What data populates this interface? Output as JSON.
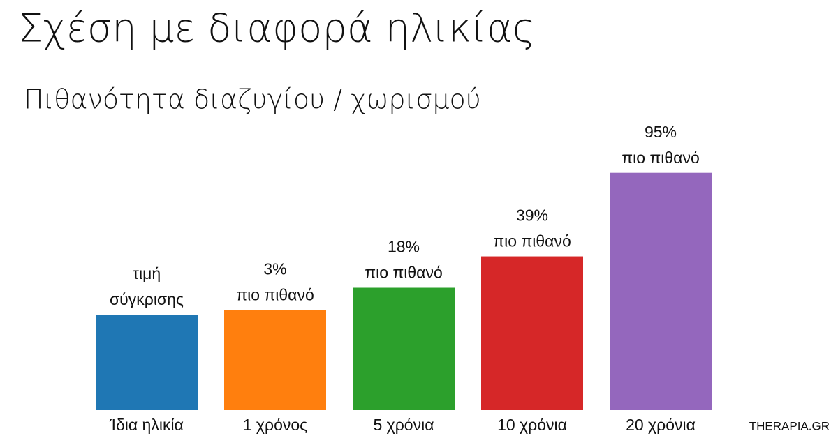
{
  "chart_data": {
    "type": "bar",
    "title": "Σχέση με διαφορά ηλικίας",
    "subtitle": "Πιθανότητα διαζυγίου / χωρισμού",
    "categories": [
      "Ίδια ηλικία",
      "1 χρόνος",
      "5 χρόνια",
      "10 χρόνια",
      "20 χρόνια"
    ],
    "values": [
      0,
      3,
      18,
      39,
      95
    ],
    "value_labels": [
      [
        "τιμή",
        "σύγκρισης"
      ],
      [
        "3%",
        "πιο πιθανό"
      ],
      [
        "18%",
        "πιο πιθανό"
      ],
      [
        "39%",
        "πιο πιθανό"
      ],
      [
        "95%",
        "πιο πιθανό"
      ]
    ],
    "colors": [
      "#1f77b4",
      "#ff7f0e",
      "#2ca02c",
      "#d62728",
      "#9467bd"
    ],
    "ylim": [
      -64,
      100
    ],
    "watermark": "THERAPIA.GR"
  }
}
